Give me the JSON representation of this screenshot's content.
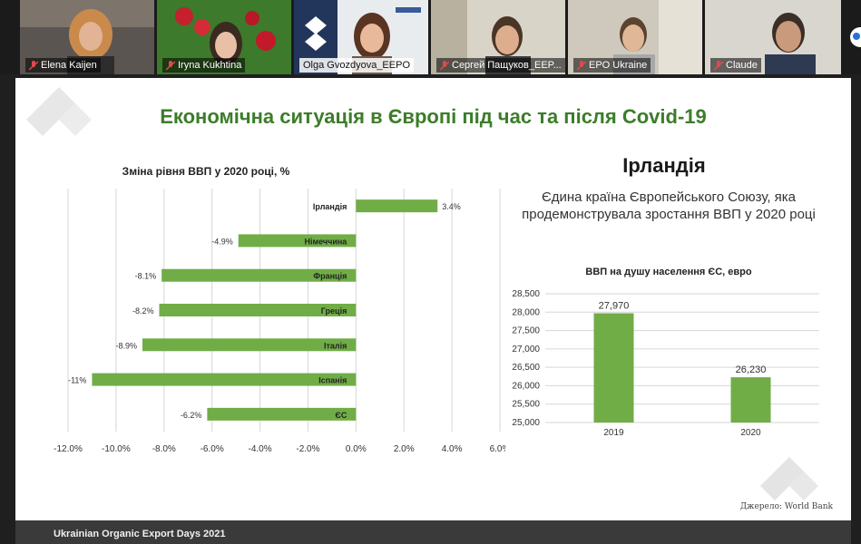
{
  "participants": [
    {
      "name": "Elena Kaijen",
      "muted": true
    },
    {
      "name": "Iryna Kukhtina",
      "muted": true
    },
    {
      "name": "Olga Gvozdyova_EEPO",
      "muted": false
    },
    {
      "name": "Сергей Пащуков_EEP...",
      "muted": true
    },
    {
      "name": "EPO Ukraine",
      "muted": true
    },
    {
      "name": "Claude",
      "muted": true
    }
  ],
  "slide": {
    "title": "Економічна ситуація в Європі під час та після Covid-19",
    "left_chart_title": "Зміна рівня ВВП у 2020 році, %",
    "right_heading": "Ірландія",
    "right_description": "Єдина країна Європейського Союзу, яка продемонструвала зростання ВВП у 2020 році",
    "right_chart_title": "ВВП на душу населення ЄС, евро",
    "source": "Джерело: World Bank",
    "footer": "Ukrainian Organic Export Days 2021"
  },
  "colors": {
    "bar": "#70ad47",
    "title": "#3c7d2a"
  },
  "chart_data": [
    {
      "type": "bar",
      "orientation": "horizontal",
      "title": "Зміна рівня ВВП у 2020 році, %",
      "categories": [
        "Ірландія",
        "Німеччина",
        "Франція",
        "Греція",
        "Італія",
        "Іспанія",
        "ЄС"
      ],
      "values": [
        3.4,
        -4.9,
        -8.1,
        -8.2,
        -8.9,
        -11,
        -6.2
      ],
      "value_labels": [
        "3.4%",
        "-4.9%",
        "-8.1%",
        "-8.2%",
        "-8.9%",
        "-11%",
        "-6.2%"
      ],
      "xlim": [
        -12,
        6
      ],
      "ticks": [
        -12,
        -10,
        -8,
        -6,
        -4,
        -2,
        0,
        2,
        4,
        6
      ],
      "tick_labels": [
        "-12.0%",
        "-10.0%",
        "-8.0%",
        "-6.0%",
        "-4.0%",
        "-2.0%",
        "0.0%",
        "2.0%",
        "4.0%",
        "6.0%"
      ],
      "grid": true
    },
    {
      "type": "bar",
      "title": "ВВП на душу населення ЄС, евро",
      "categories": [
        "2019",
        "2020"
      ],
      "values": [
        27970,
        26230
      ],
      "value_labels": [
        "27,970",
        "26,230"
      ],
      "ylim": [
        25000,
        28500
      ],
      "ticks": [
        25000,
        25500,
        26000,
        26500,
        27000,
        27500,
        28000,
        28500
      ],
      "tick_labels": [
        "25,000",
        "25,500",
        "26,000",
        "26,500",
        "27,000",
        "27,500",
        "28,000",
        "28,500"
      ],
      "grid": true
    }
  ]
}
